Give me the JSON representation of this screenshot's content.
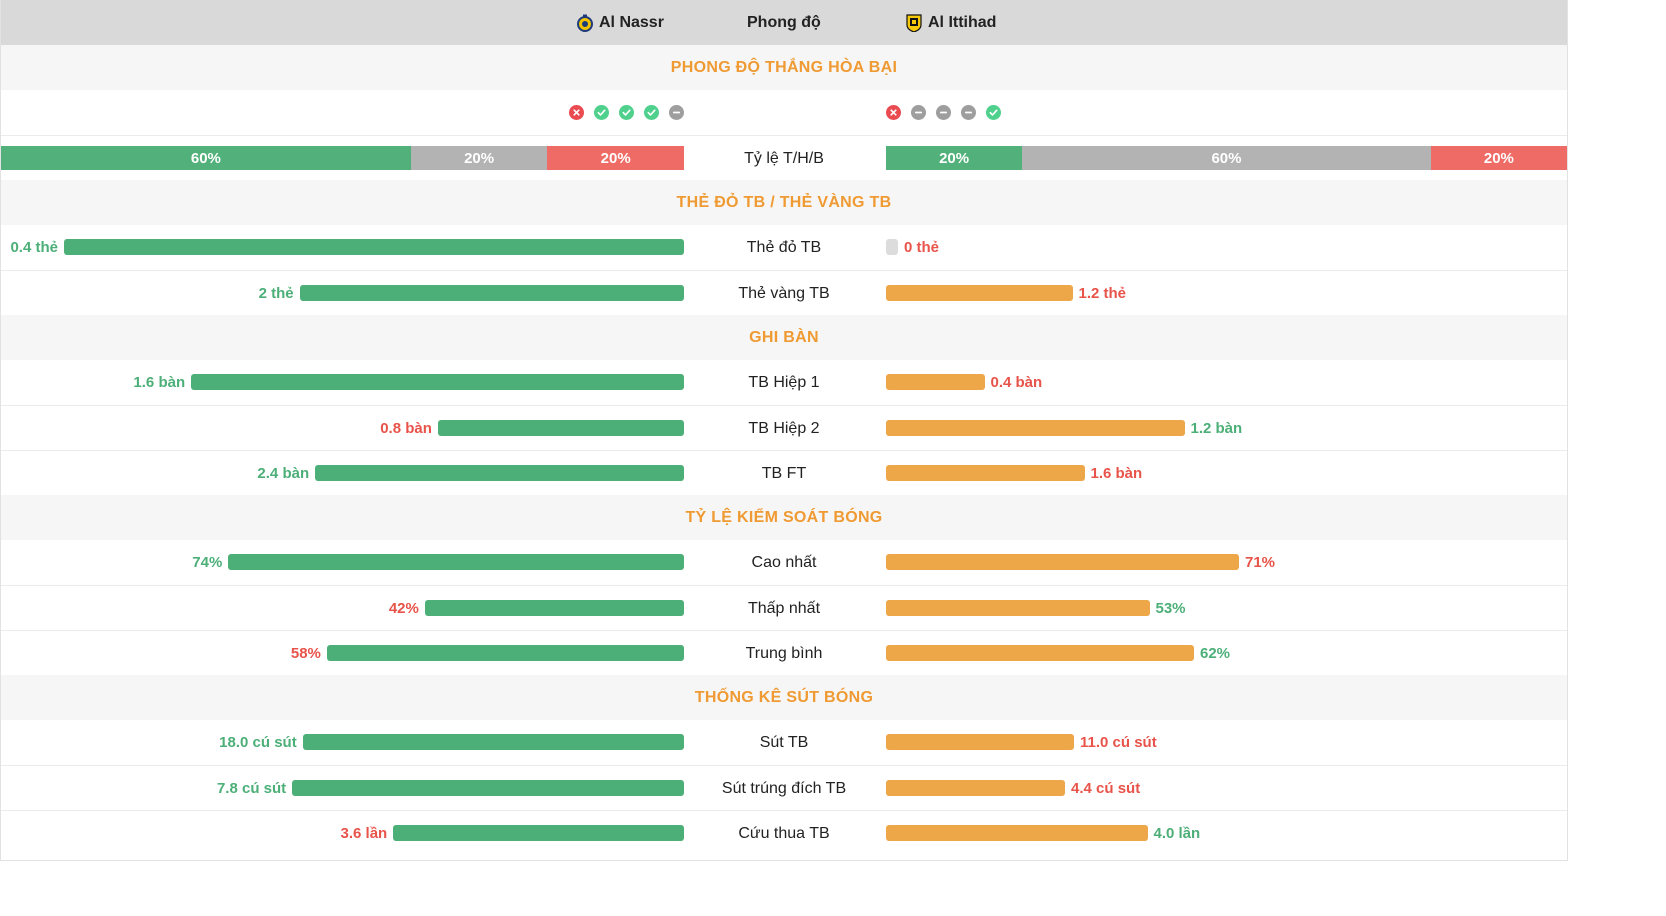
{
  "header": {
    "home_team": "Al Nassr",
    "title": "Phong độ",
    "away_team": "Al Ittihad"
  },
  "colors": {
    "accent": "#ef9a32",
    "green": "#4caf78",
    "orange": "#eda748",
    "red": "#e8534a",
    "gray": "#b3b3b3"
  },
  "form": {
    "section_title": "PHONG ĐỘ THẮNG HÒA BẠI",
    "home_results": [
      "L",
      "W",
      "W",
      "W",
      "D"
    ],
    "away_results": [
      "L",
      "D",
      "D",
      "D",
      "W"
    ],
    "ratio_label": "Tỷ lệ T/H/B",
    "home_ratio": [
      {
        "type": "W",
        "value": 60,
        "label": "60%"
      },
      {
        "type": "D",
        "value": 20,
        "label": "20%"
      },
      {
        "type": "L",
        "value": 20,
        "label": "20%"
      }
    ],
    "away_ratio": [
      {
        "type": "W",
        "value": 20,
        "label": "20%"
      },
      {
        "type": "D",
        "value": 60,
        "label": "60%"
      },
      {
        "type": "L",
        "value": 20,
        "label": "20%"
      }
    ]
  },
  "cards": {
    "section_title": "THẺ ĐỎ TB / THẺ VÀNG TB",
    "rows": [
      {
        "label": "Thẻ đỏ TB",
        "home": {
          "text": "0.4 thẻ",
          "frac": 1.0,
          "tone": "g"
        },
        "away": {
          "text": "0 thẻ",
          "frac": 0.0,
          "tone": "r"
        }
      },
      {
        "label": "Thẻ vàng TB",
        "home": {
          "text": "2 thẻ",
          "frac": 0.62,
          "tone": "g"
        },
        "away": {
          "text": "1.2 thẻ",
          "frac": 0.373,
          "tone": "r"
        }
      }
    ]
  },
  "goals": {
    "section_title": "GHI BÀN",
    "rows": [
      {
        "label": "TB Hiệp 1",
        "home": {
          "text": "1.6 bàn",
          "frac": 0.795,
          "tone": "g"
        },
        "away": {
          "text": "0.4 bàn",
          "frac": 0.197,
          "tone": "r"
        }
      },
      {
        "label": "TB Hiệp 2",
        "home": {
          "text": "0.8 bàn",
          "frac": 0.397,
          "tone": "r"
        },
        "away": {
          "text": "1.2 bàn",
          "frac": 0.597,
          "tone": "g"
        }
      },
      {
        "label": "TB FT",
        "home": {
          "text": "2.4 bàn",
          "frac": 0.595,
          "tone": "g"
        },
        "away": {
          "text": "1.6 bàn",
          "frac": 0.397,
          "tone": "r"
        }
      }
    ]
  },
  "possession": {
    "section_title": "TỶ LỆ KIỂM SOÁT BÓNG",
    "rows": [
      {
        "label": "Cao nhất",
        "home": {
          "text": "74%",
          "frac": 0.735,
          "tone": "g"
        },
        "away": {
          "text": "71%",
          "frac": 0.706,
          "tone": "r"
        }
      },
      {
        "label": "Thấp nhất",
        "home": {
          "text": "42%",
          "frac": 0.418,
          "tone": "r"
        },
        "away": {
          "text": "53%",
          "frac": 0.527,
          "tone": "g"
        }
      },
      {
        "label": "Trung bình",
        "home": {
          "text": "58%",
          "frac": 0.576,
          "tone": "r"
        },
        "away": {
          "text": "62%",
          "frac": 0.616,
          "tone": "g"
        }
      }
    ]
  },
  "shots": {
    "section_title": "THỐNG KÊ SÚT BÓNG",
    "rows": [
      {
        "label": "Sút TB",
        "home": {
          "text": "18.0 cú sút",
          "frac": 0.615,
          "tone": "g"
        },
        "away": {
          "text": "11.0 cú sút",
          "frac": 0.376,
          "tone": "r"
        }
      },
      {
        "label": "Sút trúng đích TB",
        "home": {
          "text": "7.8 cú sút",
          "frac": 0.632,
          "tone": "g"
        },
        "away": {
          "text": "4.4 cú sút",
          "frac": 0.358,
          "tone": "r"
        }
      },
      {
        "label": "Cứu thua TB",
        "home": {
          "text": "3.6 lần",
          "frac": 0.469,
          "tone": "r"
        },
        "away": {
          "text": "4.0 lần",
          "frac": 0.523,
          "tone": "g"
        }
      }
    ]
  }
}
